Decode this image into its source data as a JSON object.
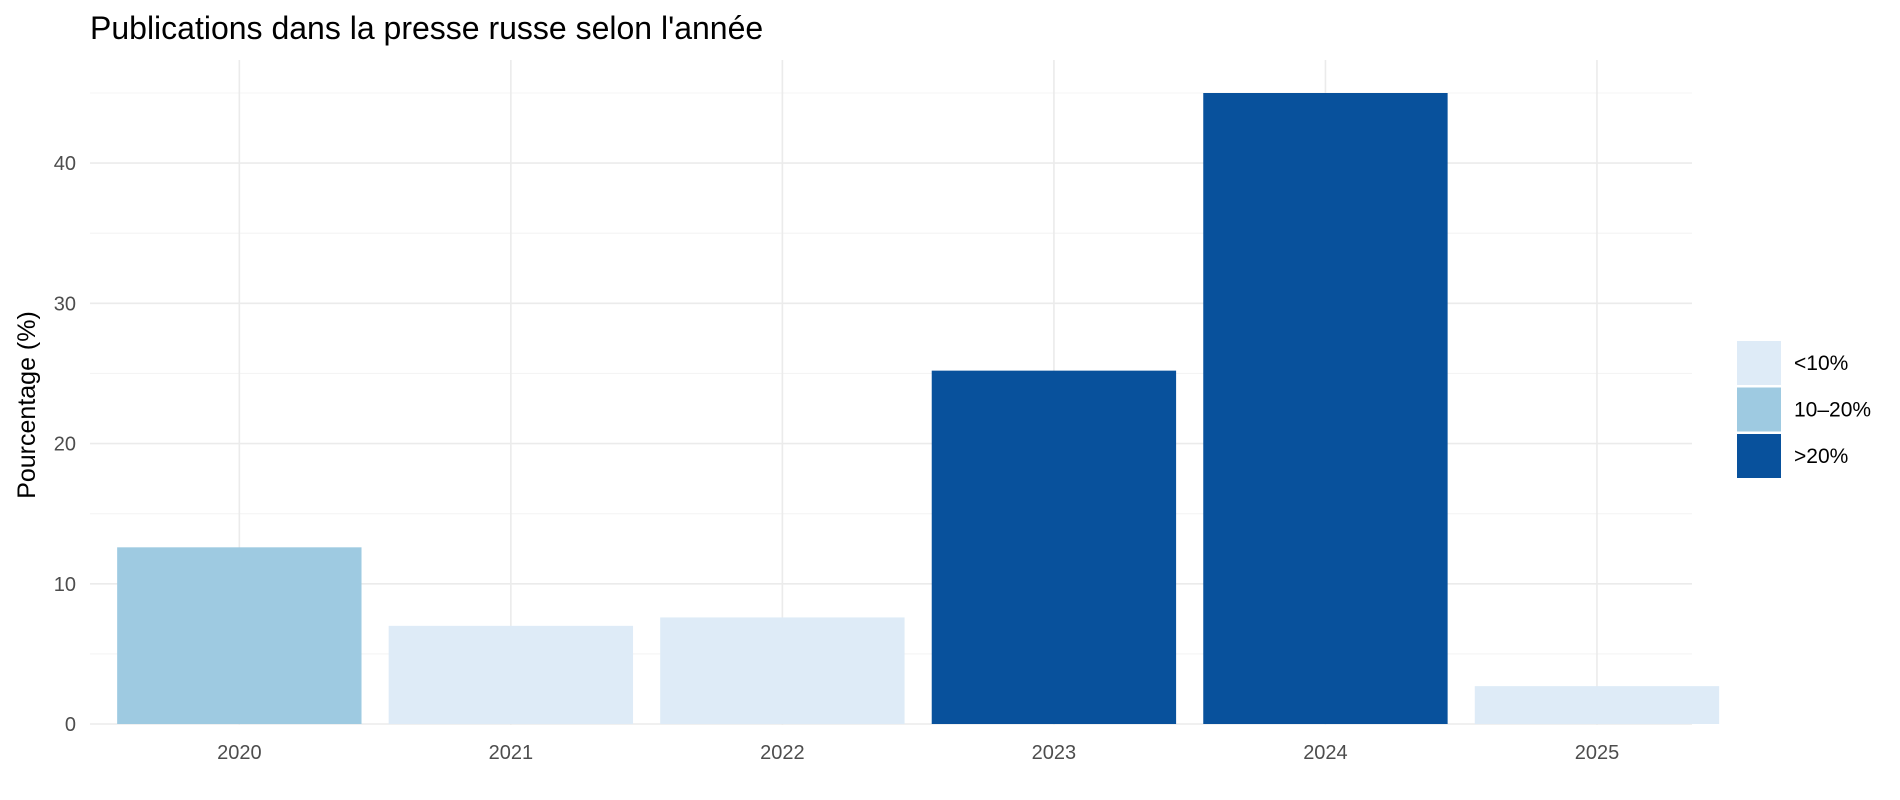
{
  "chart_data": {
    "type": "bar",
    "title": "Publications dans la presse russe selon l'année",
    "xlabel": "",
    "ylabel": "Pourcentage (%)",
    "categories": [
      "2020",
      "2021",
      "2022",
      "2023",
      "2024",
      "2025"
    ],
    "values": [
      12.6,
      7.0,
      7.6,
      25.2,
      45.0,
      2.7
    ],
    "bar_groups": [
      "10–20%",
      "<10%",
      "<10%",
      ">20%",
      ">20%",
      "<10%"
    ],
    "ylim": [
      0,
      45
    ],
    "y_ticks": [
      0,
      10,
      20,
      30,
      40
    ],
    "grid": true,
    "legend": {
      "placement": "right",
      "entries": [
        {
          "label": "<10%",
          "color": "#deebf7"
        },
        {
          "label": "10–20%",
          "color": "#9ecae1"
        },
        {
          "label": ">20%",
          "color": "#08519c"
        }
      ]
    }
  }
}
